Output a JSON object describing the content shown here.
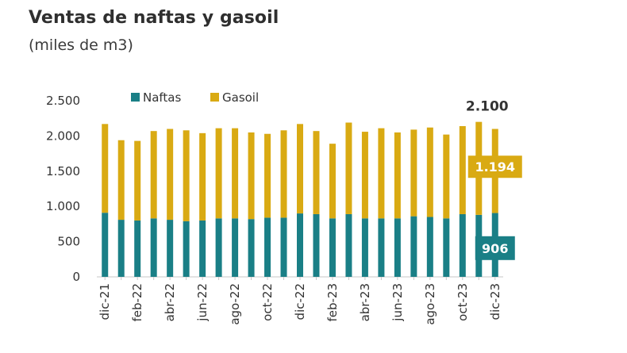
{
  "title": "Ventas de naftas y gasoil",
  "subtitle": "(miles de m3)",
  "colors": {
    "naftas": "#1a7f86",
    "gasoil": "#d9aa13",
    "axis": "#c7c7c7",
    "text": "#333333"
  },
  "chart_data": {
    "type": "bar",
    "stacked": true,
    "title": "Ventas de naftas y gasoil",
    "subtitle": "(miles de m3)",
    "ylim": [
      0,
      2500
    ],
    "yticks": [
      0,
      500,
      1000,
      1500,
      2000,
      2500
    ],
    "ytick_labels": [
      "0",
      "500",
      "1.000",
      "1.500",
      "2.000",
      "2.500"
    ],
    "categories": [
      "dic-21",
      "ene-22",
      "feb-22",
      "mar-22",
      "abr-22",
      "may-22",
      "jun-22",
      "jul-22",
      "ago-22",
      "sep-22",
      "oct-22",
      "nov-22",
      "dic-22",
      "ene-23",
      "feb-23",
      "mar-23",
      "abr-23",
      "may-23",
      "jun-23",
      "jul-23",
      "ago-23",
      "sep-23",
      "oct-23",
      "nov-23",
      "dic-23"
    ],
    "tick_labels": [
      "dic-21",
      "",
      "feb-22",
      "",
      "abr-22",
      "",
      "jun-22",
      "",
      "ago-22",
      "",
      "oct-22",
      "",
      "dic-22",
      "",
      "feb-23",
      "",
      "abr-23",
      "",
      "jun-23",
      "",
      "ago-23",
      "",
      "oct-23",
      "",
      "dic-23"
    ],
    "legend_position": "top",
    "series": [
      {
        "name": "Naftas",
        "values": [
          910,
          810,
          800,
          830,
          810,
          790,
          800,
          830,
          830,
          820,
          840,
          840,
          900,
          890,
          830,
          890,
          830,
          830,
          830,
          860,
          850,
          830,
          890,
          880,
          906
        ]
      },
      {
        "name": "Gasoil",
        "values": [
          1260,
          1130,
          1130,
          1240,
          1290,
          1290,
          1240,
          1280,
          1280,
          1230,
          1190,
          1240,
          1270,
          1180,
          1060,
          1300,
          1230,
          1280,
          1220,
          1230,
          1270,
          1190,
          1250,
          1320,
          1194
        ]
      }
    ],
    "annotations": {
      "total_label": "2.100",
      "gasoil_label": "1.194",
      "naftas_label": "906"
    }
  }
}
